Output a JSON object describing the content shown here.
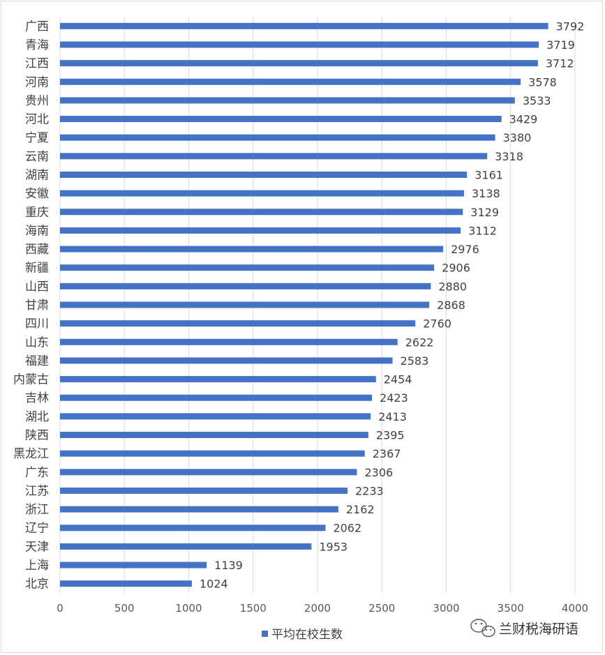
{
  "chart_data": {
    "type": "bar",
    "orientation": "horizontal",
    "categories": [
      "广西",
      "青海",
      "江西",
      "河南",
      "贵州",
      "河北",
      "宁夏",
      "云南",
      "湖南",
      "安徽",
      "重庆",
      "海南",
      "西藏",
      "新疆",
      "山西",
      "甘肃",
      "四川",
      "山东",
      "福建",
      "内蒙古",
      "吉林",
      "湖北",
      "陕西",
      "黑龙江",
      "广东",
      "江苏",
      "浙江",
      "辽宁",
      "天津",
      "上海",
      "北京"
    ],
    "series": [
      {
        "name": "平均在校生数",
        "values": [
          3792,
          3719,
          3712,
          3578,
          3533,
          3429,
          3380,
          3318,
          3161,
          3138,
          3129,
          3112,
          2976,
          2906,
          2880,
          2868,
          2760,
          2622,
          2583,
          2454,
          2423,
          2413,
          2395,
          2367,
          2306,
          2233,
          2162,
          2062,
          1953,
          1139,
          1024
        ],
        "color": "#4472c4"
      }
    ],
    "highlight": {
      "category": "甘肃",
      "label_color": "#ff0000"
    },
    "value_label_color": "#404040",
    "xlim": [
      0,
      4000
    ],
    "x_ticks": [
      0,
      500,
      1000,
      1500,
      2000,
      2500,
      3000,
      3500,
      4000
    ],
    "grid": "vertical",
    "grid_color": "#d9d9d9",
    "legend_position": "bottom"
  },
  "watermark": {
    "text": "兰财税海研语",
    "icon": "wechat-icon"
  }
}
